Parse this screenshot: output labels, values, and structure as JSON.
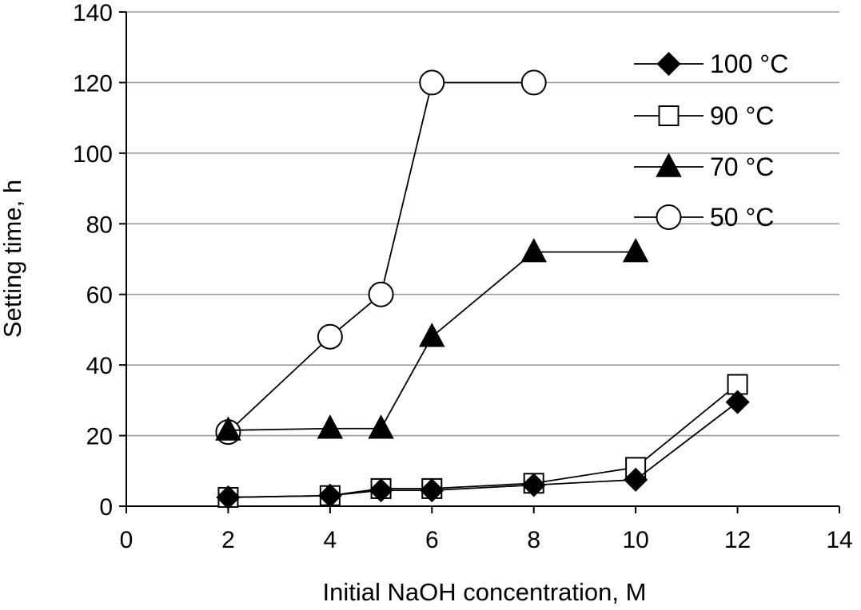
{
  "chart_data": {
    "type": "line",
    "xlabel": "Initial NaOH concentration, M",
    "ylabel": "Setting time, h",
    "xlim": [
      0,
      14
    ],
    "ylim": [
      0,
      140
    ],
    "xticks": [
      0,
      2,
      4,
      6,
      8,
      10,
      12,
      14
    ],
    "yticks": [
      0,
      20,
      40,
      60,
      80,
      100,
      120,
      140
    ],
    "grid": "horizontal",
    "legend_position": "top-right",
    "series": [
      {
        "name": "100 °C",
        "marker": "diamond-filled",
        "points": [
          [
            2,
            2.5
          ],
          [
            4,
            3
          ],
          [
            5,
            4.5
          ],
          [
            6,
            4.5
          ],
          [
            8,
            6
          ],
          [
            10,
            7.5
          ],
          [
            12,
            29.5
          ]
        ]
      },
      {
        "name": "90 °C",
        "marker": "square-open",
        "points": [
          [
            2,
            2.5
          ],
          [
            4,
            3
          ],
          [
            5,
            5
          ],
          [
            6,
            5
          ],
          [
            8,
            6.5
          ],
          [
            10,
            11
          ],
          [
            12,
            34.5
          ]
        ]
      },
      {
        "name": "70 °C",
        "marker": "triangle-filled",
        "points": [
          [
            2,
            21.5
          ],
          [
            4,
            22
          ],
          [
            5,
            22
          ],
          [
            6,
            48
          ],
          [
            8,
            72
          ],
          [
            10,
            72
          ]
        ]
      },
      {
        "name": "50 °C",
        "marker": "circle-open",
        "points": [
          [
            2,
            21
          ],
          [
            4,
            48
          ],
          [
            5,
            60
          ],
          [
            6,
            120
          ],
          [
            8,
            120
          ]
        ]
      }
    ]
  }
}
